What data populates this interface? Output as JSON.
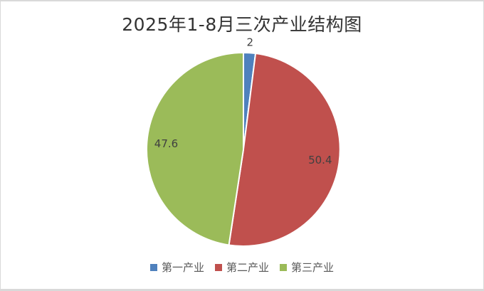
{
  "frame": {
    "background": "#ffffff",
    "border_color": "#d9d9d9"
  },
  "chart_data": {
    "type": "pie",
    "title": "2025年1-8月三次产业结构图",
    "legend_position": "bottom",
    "direction": "clockwise",
    "start_angle_deg": 0,
    "data_labels": true,
    "label_color": "#404040",
    "slice_border_color": "#ffffff",
    "series": [
      {
        "key": "primary-industry",
        "name": "第一产业",
        "value": 2,
        "label": "2",
        "label_position": "outside",
        "color": "#4f81bd"
      },
      {
        "key": "secondary-industry",
        "name": "第二产业",
        "value": 50.4,
        "label": "50.4",
        "label_position": "inside",
        "color": "#c0504d"
      },
      {
        "key": "tertiary-industry",
        "name": "第三产业",
        "value": 47.6,
        "label": "47.6",
        "label_position": "inside",
        "color": "#9bbb59"
      }
    ]
  }
}
